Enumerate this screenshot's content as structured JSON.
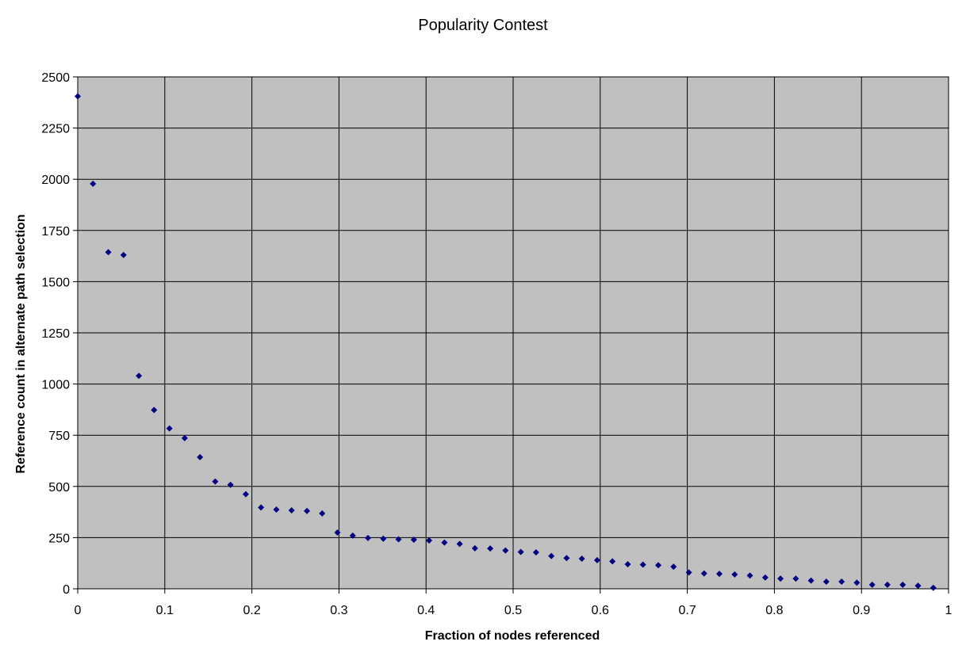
{
  "chart_data": {
    "type": "scatter",
    "title": "Popularity Contest",
    "xlabel": "Fraction of nodes referenced",
    "ylabel": "Reference count in alternate path selection",
    "xlim": [
      0,
      1
    ],
    "ylim": [
      0,
      2500
    ],
    "x_ticks": [
      "0",
      "0.1",
      "0.2",
      "0.3",
      "0.4",
      "0.5",
      "0.6",
      "0.7",
      "0.8",
      "0.9",
      "1"
    ],
    "y_ticks": [
      "0",
      "250",
      "500",
      "750",
      "1000",
      "1250",
      "1500",
      "1750",
      "2000",
      "2250",
      "2500"
    ],
    "grid": true,
    "legend": "none",
    "colors": {
      "plot_background": "#c0c0c0",
      "marker": "#000080",
      "grid": "#000000"
    },
    "marker_shape": "diamond",
    "points": [
      [
        0.0,
        2405
      ],
      [
        0.0175,
        1978
      ],
      [
        0.0351,
        1644
      ],
      [
        0.0526,
        1630
      ],
      [
        0.0702,
        1040
      ],
      [
        0.0877,
        873
      ],
      [
        0.1053,
        783
      ],
      [
        0.1228,
        736
      ],
      [
        0.1404,
        643
      ],
      [
        0.1579,
        524
      ],
      [
        0.1754,
        508
      ],
      [
        0.193,
        462
      ],
      [
        0.2105,
        397
      ],
      [
        0.2281,
        387
      ],
      [
        0.2456,
        383
      ],
      [
        0.2632,
        380
      ],
      [
        0.2807,
        368
      ],
      [
        0.2982,
        275
      ],
      [
        0.3158,
        260
      ],
      [
        0.3333,
        248
      ],
      [
        0.3509,
        245
      ],
      [
        0.3684,
        242
      ],
      [
        0.386,
        240
      ],
      [
        0.4035,
        236
      ],
      [
        0.4211,
        226
      ],
      [
        0.4386,
        219
      ],
      [
        0.4561,
        198
      ],
      [
        0.4737,
        197
      ],
      [
        0.4912,
        187
      ],
      [
        0.5088,
        180
      ],
      [
        0.5263,
        178
      ],
      [
        0.5439,
        160
      ],
      [
        0.5614,
        150
      ],
      [
        0.5789,
        147
      ],
      [
        0.5965,
        140
      ],
      [
        0.614,
        134
      ],
      [
        0.6316,
        120
      ],
      [
        0.6491,
        118
      ],
      [
        0.6667,
        115
      ],
      [
        0.6842,
        108
      ],
      [
        0.7018,
        80
      ],
      [
        0.7193,
        75
      ],
      [
        0.7368,
        73
      ],
      [
        0.7544,
        70
      ],
      [
        0.7719,
        65
      ],
      [
        0.7895,
        55
      ],
      [
        0.807,
        50
      ],
      [
        0.8246,
        50
      ],
      [
        0.8421,
        40
      ],
      [
        0.8596,
        35
      ],
      [
        0.8772,
        35
      ],
      [
        0.8947,
        30
      ],
      [
        0.9123,
        20
      ],
      [
        0.9298,
        20
      ],
      [
        0.9474,
        20
      ],
      [
        0.9649,
        15
      ],
      [
        0.9825,
        5
      ]
    ]
  }
}
